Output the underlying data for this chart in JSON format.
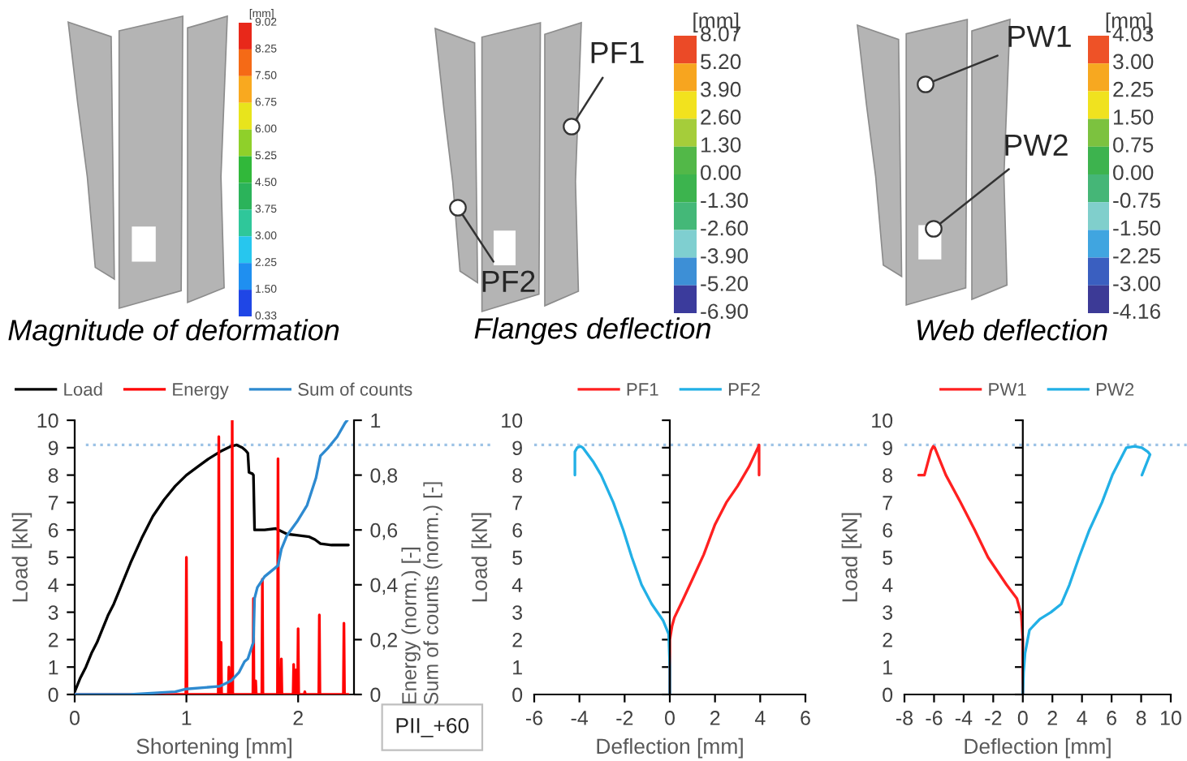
{
  "chart_data": [
    {
      "type": "other",
      "title": "Magnitude of deformation",
      "clabel": "[mm]",
      "annotations": [
        "9.02",
        "8.25",
        "7.50",
        "6.75",
        "6.00",
        "5.25",
        "4.50",
        "3.75",
        "3.00",
        "2.25",
        "1.50",
        "0.33"
      ],
      "colors": [
        "#e8281a",
        "#f56a16",
        "#f9a91f",
        "#e8e41c",
        "#8fd02a",
        "#31b83a",
        "#2bb35a",
        "#2fc79a",
        "#27c6ee",
        "#1f8ff0",
        "#1f46e6"
      ]
    },
    {
      "type": "other",
      "title": "Flanges deflection",
      "clabel": "[mm]",
      "annotations": [
        "PF1",
        "PF2",
        "8.07",
        "5.20",
        "3.90",
        "2.60",
        "1.30",
        "0.00",
        "-1.30",
        "-2.60",
        "-3.90",
        "-5.20",
        "-6.90"
      ],
      "colors": [
        "#eb4a27",
        "#f7a51f",
        "#f2e21e",
        "#a5cd3a",
        "#52b848",
        "#3cb44e",
        "#44b878",
        "#7fcfd0",
        "#3d8fd6",
        "#3b3b9c"
      ]
    },
    {
      "type": "other",
      "title": "Web deflection",
      "clabel": "[mm]",
      "annotations": [
        "PW1",
        "PW2",
        "4.03",
        "3.00",
        "2.25",
        "1.50",
        "0.75",
        "0.00",
        "-0.75",
        "-1.50",
        "-2.25",
        "-3.00",
        "-4.16"
      ],
      "colors": [
        "#ee5227",
        "#f7a820",
        "#f0e21f",
        "#7cc23f",
        "#3db34e",
        "#45b677",
        "#80cfcc",
        "#40a5e0",
        "#3a5fc0",
        "#3c3a96"
      ]
    },
    {
      "type": "line",
      "xlabel": "Shortening [mm]",
      "ylabel": "Load [kN]",
      "y2label": "Energy (norm.) [-]\nSum of counts (norm.) [-]",
      "xlim": [
        0,
        2.5
      ],
      "xticks": [
        0,
        1,
        2
      ],
      "ylim": [
        0,
        10
      ],
      "yticks": [
        0,
        1,
        2,
        3,
        4,
        5,
        6,
        7,
        8,
        9,
        10
      ],
      "y2lim": [
        0,
        1
      ],
      "y2ticks": [
        0,
        {
          "value": 0.2,
          "label": "0,2"
        },
        {
          "value": 0.4,
          "label": "0,4"
        },
        {
          "value": 0.6,
          "label": "0,6"
        },
        {
          "value": 0.8,
          "label": "0,8"
        },
        1
      ],
      "legend": "top",
      "ref_lines": [
        {
          "axis": "y",
          "value": 9.1,
          "color": "#9dc3e6",
          "line_style": "dotted"
        }
      ],
      "annotations": [
        "PII_+60"
      ],
      "series": [
        {
          "name": "Load",
          "color": "#000000",
          "x": [
            0,
            0.05,
            0.1,
            0.15,
            0.2,
            0.25,
            0.3,
            0.35,
            0.4,
            0.5,
            0.6,
            0.7,
            0.8,
            0.9,
            1.0,
            1.1,
            1.2,
            1.3,
            1.4,
            1.45,
            1.5,
            1.53,
            1.55,
            1.56,
            1.59,
            1.6,
            1.61,
            1.7,
            1.8,
            1.9,
            2.0,
            2.1,
            2.15,
            2.2,
            2.3,
            2.45
          ],
          "values": [
            0.1,
            0.6,
            1.0,
            1.5,
            1.9,
            2.4,
            2.9,
            3.3,
            3.8,
            4.8,
            5.7,
            6.5,
            7.1,
            7.6,
            8.0,
            8.3,
            8.6,
            8.85,
            9.05,
            9.1,
            9.0,
            8.9,
            8.8,
            8.1,
            8.05,
            8.0,
            6.0,
            6.0,
            6.05,
            5.85,
            5.8,
            5.75,
            5.65,
            5.5,
            5.45,
            5.45
          ]
        },
        {
          "name": "Energy",
          "color": "#ff0000",
          "axis": "y2",
          "x": [
            0,
            0.995,
            1.0,
            1.005,
            1.285,
            1.29,
            1.295,
            1.305,
            1.31,
            1.315,
            1.375,
            1.38,
            1.385,
            1.405,
            1.41,
            1.415,
            1.595,
            1.6,
            1.605,
            1.615,
            1.62,
            1.625,
            1.675,
            1.68,
            1.685,
            1.815,
            1.82,
            1.825,
            1.845,
            1.85,
            1.855,
            1.955,
            1.96,
            1.965,
            1.975,
            1.98,
            1.985,
            1.995,
            2.0,
            2.005,
            2.055,
            2.06,
            2.065,
            2.185,
            2.19,
            2.195,
            2.405,
            2.41,
            2.415,
            2.45
          ],
          "values": [
            0,
            0,
            0.5,
            0,
            0,
            0.94,
            0,
            0,
            0.19,
            0,
            0,
            0.1,
            0,
            0,
            1,
            0,
            0,
            0.35,
            0,
            0,
            0.05,
            0,
            0,
            0.42,
            0,
            0,
            0.86,
            0,
            0,
            0.13,
            0,
            0,
            0.11,
            0,
            0,
            0.09,
            0,
            0,
            0.24,
            0,
            0,
            0.01,
            0,
            0,
            0.29,
            0,
            0,
            0.26,
            0,
            0
          ]
        },
        {
          "name": "Sum of counts",
          "color": "#2e8ad0",
          "axis": "y2",
          "x": [
            0,
            0.5,
            0.9,
            1.0,
            1.3,
            1.35,
            1.4,
            1.47,
            1.52,
            1.55,
            1.59,
            1.6,
            1.61,
            1.635,
            1.7,
            1.82,
            1.85,
            1.9,
            1.99,
            2.08,
            2.16,
            2.2,
            2.27,
            2.35,
            2.42,
            2.44
          ],
          "values": [
            0,
            0,
            0.01,
            0.02,
            0.03,
            0.04,
            0.05,
            0.08,
            0.12,
            0.13,
            0.18,
            0.19,
            0.35,
            0.39,
            0.43,
            0.47,
            0.53,
            0.58,
            0.63,
            0.69,
            0.79,
            0.87,
            0.9,
            0.94,
            0.99,
            1.0
          ]
        }
      ]
    },
    {
      "type": "line",
      "xlabel": "Deflection [mm]",
      "ylabel": "Load [kN]",
      "xlim": [
        -6,
        6
      ],
      "xticks": [
        -6,
        -4,
        -2,
        0,
        2,
        4,
        6
      ],
      "ylim": [
        0,
        10
      ],
      "yticks": [
        0,
        1,
        2,
        3,
        4,
        5,
        6,
        7,
        8,
        9,
        10
      ],
      "legend": "top",
      "ref_lines": [
        {
          "axis": "y",
          "value": 9.1,
          "color": "#9dc3e6",
          "line_style": "dotted"
        }
      ],
      "series": [
        {
          "name": "PF1",
          "color": "#ff2020",
          "x": [
            0,
            0,
            0.1,
            0.2,
            0.55,
            1.0,
            1.5,
            2.0,
            2.5,
            3.0,
            3.5,
            3.9,
            3.95,
            3.95
          ],
          "values": [
            0,
            2.0,
            2.5,
            2.8,
            3.4,
            4.2,
            5.1,
            6.2,
            7.0,
            7.6,
            8.3,
            9.0,
            9.1,
            8.0
          ]
        },
        {
          "name": "PF2",
          "color": "#22b0e6",
          "x": [
            0,
            0,
            -0.05,
            -0.3,
            -0.8,
            -1.25,
            -1.68,
            -2.06,
            -2.5,
            -3.04,
            -3.4,
            -3.85,
            -3.95,
            -4.1,
            -4.2,
            -4.2
          ],
          "values": [
            0,
            1,
            2.2,
            2.7,
            3.3,
            4.0,
            5.0,
            6.0,
            7.0,
            8.0,
            8.5,
            9.0,
            9.05,
            9.0,
            8.85,
            8.0
          ]
        }
      ]
    },
    {
      "type": "line",
      "xlabel": "Deflection [mm]",
      "ylabel": "Load [kN]",
      "xlim": [
        -8,
        10
      ],
      "xticks": [
        -8,
        -6,
        -4,
        -2,
        0,
        2,
        4,
        6,
        8,
        10
      ],
      "ylim": [
        0,
        10
      ],
      "yticks": [
        0,
        1,
        2,
        3,
        4,
        5,
        6,
        7,
        8,
        9,
        10
      ],
      "legend": "top",
      "ref_lines": [
        {
          "axis": "y",
          "value": 9.1,
          "color": "#9dc3e6",
          "line_style": "dotted"
        }
      ],
      "series": [
        {
          "name": "PW1",
          "color": "#ff2020",
          "x": [
            0,
            0,
            -0.1,
            -0.4,
            -1.1,
            -2.35,
            -3.25,
            -4.2,
            -5.2,
            -5.95,
            -6.05,
            -6.2,
            -6.65,
            -7.05
          ],
          "values": [
            0,
            2.0,
            2.9,
            3.5,
            4.0,
            5.0,
            6.0,
            7.0,
            8.0,
            9.0,
            9.05,
            8.9,
            8.0,
            8.0
          ]
        },
        {
          "name": "PW2",
          "color": "#22b0e6",
          "x": [
            0,
            0.05,
            0.15,
            0.45,
            1.15,
            1.9,
            2.6,
            3.15,
            3.8,
            4.5,
            5.35,
            6.05,
            7.0,
            7.55,
            8.05,
            8.45,
            8.6,
            8.05
          ],
          "values": [
            0,
            0.8,
            1.5,
            2.35,
            2.75,
            3.0,
            3.3,
            4.0,
            5.0,
            6.0,
            7.0,
            8.0,
            9.0,
            9.05,
            9.0,
            8.85,
            8.75,
            8.0
          ]
        }
      ]
    }
  ]
}
